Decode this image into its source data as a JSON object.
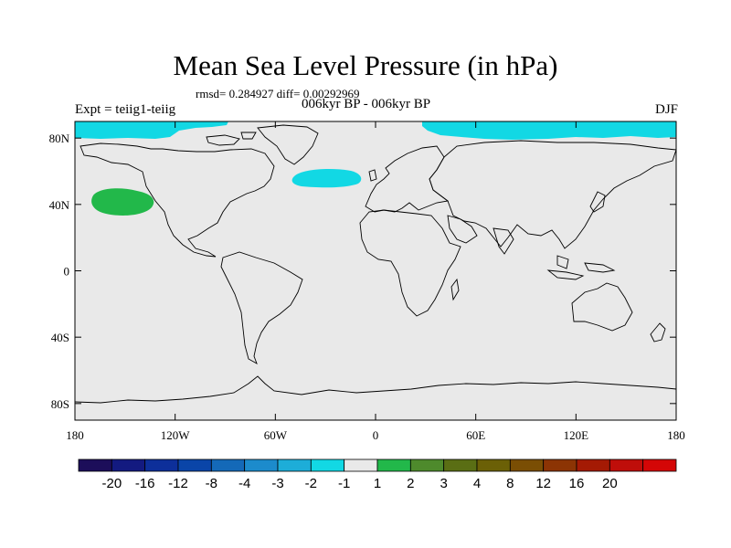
{
  "header": {
    "title": "Mean Sea Level Pressure (in hPa)",
    "stats": "rmsd= 0.284927 diff= 0.00292969",
    "period": "006kyr BP - 006kyr BP",
    "experiment": "Expt = teiig1-teiig",
    "season": "DJF"
  },
  "axes": {
    "lat_ticks": [
      {
        "lat": 80,
        "label": "80N"
      },
      {
        "lat": 40,
        "label": "40N"
      },
      {
        "lat": 0,
        "label": "0"
      },
      {
        "lat": -40,
        "label": "40S"
      },
      {
        "lat": -80,
        "label": "80S"
      }
    ],
    "lon_ticks": [
      {
        "lon": -180,
        "label": "180"
      },
      {
        "lon": -120,
        "label": "120W"
      },
      {
        "lon": -60,
        "label": "60W"
      },
      {
        "lon": 0,
        "label": "0"
      },
      {
        "lon": 60,
        "label": "60E"
      },
      {
        "lon": 120,
        "label": "120E"
      },
      {
        "lon": 180,
        "label": "180"
      }
    ],
    "lon_range": [
      -180,
      180
    ],
    "lat_range": [
      -90,
      90
    ]
  },
  "colorbar": {
    "colors": [
      "#1c0e5a",
      "#131a80",
      "#0d2f9a",
      "#0a45a8",
      "#1469b8",
      "#1c8bcc",
      "#1dadd8",
      "#12d8e4",
      "#e9e9e9",
      "#22b84a",
      "#4e8a2c",
      "#5a6e14",
      "#6b6006",
      "#7a4e04",
      "#8c3404",
      "#a41a04",
      "#bf0e0a",
      "#d40606"
    ],
    "labels": [
      "-20",
      "-16",
      "-12",
      "-8",
      "-4",
      "-3",
      "-2",
      "-1",
      "1",
      "2",
      "3",
      "4",
      "8",
      "12",
      "16",
      "20"
    ]
  },
  "anomalies": [
    {
      "name": "arctic-negative-west",
      "value_range": "-2 to -1",
      "color": "#12d8e4"
    },
    {
      "name": "arctic-negative-east",
      "value_range": "-2 to -1",
      "color": "#12d8e4"
    },
    {
      "name": "north-atlantic-negative",
      "value_range": "-2 to -1",
      "color": "#12d8e4"
    },
    {
      "name": "north-pacific-positive",
      "value_range": "1 to 2",
      "color": "#22b84a"
    }
  ],
  "colors": {
    "background_field": "#e9e9e9",
    "coastline": "#000000"
  }
}
